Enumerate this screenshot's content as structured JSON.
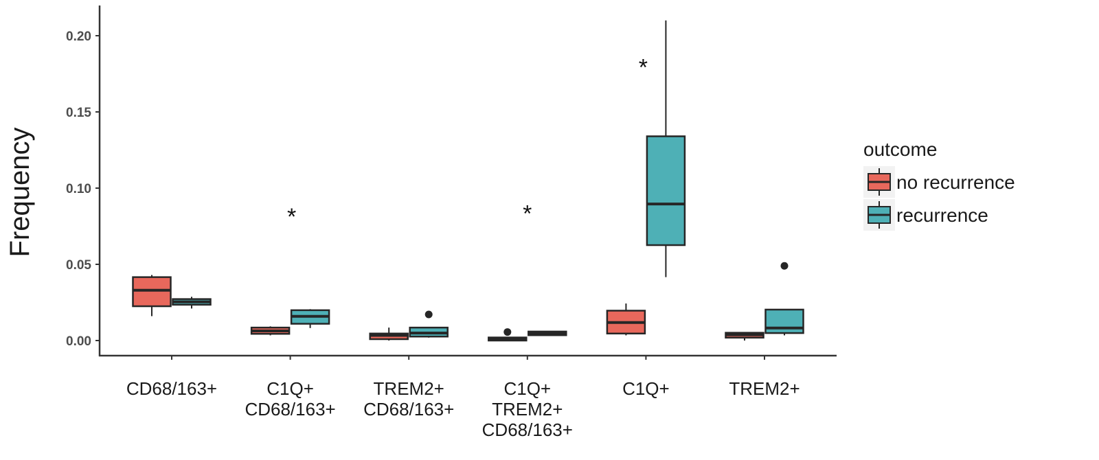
{
  "chart_data": {
    "type": "box",
    "title": "",
    "xlabel": "",
    "ylabel": "Frequency",
    "ylim": [
      -0.009,
      0.215
    ],
    "yticks": [
      "0.00",
      "0.05",
      "0.10",
      "0.15",
      "0.20"
    ],
    "ytick_values": [
      0,
      0.05,
      0.1,
      0.15,
      0.2
    ],
    "grid": false,
    "legend": {
      "title": "outcome",
      "placement": "right",
      "entries": [
        "no recurrence",
        "recurrence"
      ]
    },
    "colors": {
      "no recurrence": "#e8685c",
      "recurrence": "#4eb0b6",
      "stroke": "#262626"
    },
    "categories": [
      {
        "label": [
          "CD68/163+"
        ],
        "significance": ""
      },
      {
        "label": [
          "C1Q+",
          "CD68/163+"
        ],
        "significance": "*",
        "sig_y": 0.086
      },
      {
        "label": [
          "TREM2+",
          "CD68/163+"
        ],
        "significance": ""
      },
      {
        "label": [
          "C1Q+",
          "TREM2+",
          "CD68/163+"
        ],
        "significance": "*",
        "sig_y": 0.088
      },
      {
        "label": [
          "C1Q+"
        ],
        "significance": "*",
        "sig_y": 0.184
      },
      {
        "label": [
          "TREM2+"
        ],
        "significance": ""
      }
    ],
    "series": [
      {
        "name": "no recurrence",
        "boxes": [
          {
            "min": 0.016,
            "q1": 0.0225,
            "median": 0.033,
            "q3": 0.0416,
            "max": 0.043,
            "outliers": []
          },
          {
            "min": 0.0034,
            "q1": 0.0044,
            "median": 0.0063,
            "q3": 0.0085,
            "max": 0.0093,
            "outliers": []
          },
          {
            "min": 0.0,
            "q1": 0.0009,
            "median": 0.0034,
            "q3": 0.0046,
            "max": 0.0085,
            "outliers": []
          },
          {
            "min": 0.0,
            "q1": 0.0,
            "median": 0.0009,
            "q3": 0.002,
            "max": 0.002,
            "outliers": [
              0.0056
            ]
          },
          {
            "min": 0.0034,
            "q1": 0.0046,
            "median": 0.0118,
            "q3": 0.0196,
            "max": 0.0243,
            "outliers": []
          },
          {
            "min": 0.0,
            "q1": 0.0019,
            "median": 0.0038,
            "q3": 0.0051,
            "max": 0.0051,
            "outliers": []
          }
        ]
      },
      {
        "name": "recurrence",
        "boxes": [
          {
            "min": 0.021,
            "q1": 0.0235,
            "median": 0.0254,
            "q3": 0.0272,
            "max": 0.0287,
            "outliers": []
          },
          {
            "min": 0.0082,
            "q1": 0.011,
            "median": 0.0159,
            "q3": 0.0199,
            "max": 0.0206,
            "outliers": []
          },
          {
            "min": 0.0019,
            "q1": 0.0026,
            "median": 0.0049,
            "q3": 0.0085,
            "max": 0.0085,
            "outliers": [
              0.0171
            ]
          },
          {
            "min": 0.0032,
            "q1": 0.0035,
            "median": 0.0047,
            "q3": 0.0059,
            "max": 0.0059,
            "outliers": []
          },
          {
            "min": 0.0416,
            "q1": 0.0626,
            "median": 0.0896,
            "q3": 0.134,
            "max": 0.21,
            "outliers": []
          },
          {
            "min": 0.0034,
            "q1": 0.0049,
            "median": 0.0082,
            "q3": 0.0203,
            "max": 0.0203,
            "outliers": [
              0.049
            ]
          }
        ]
      }
    ]
  }
}
